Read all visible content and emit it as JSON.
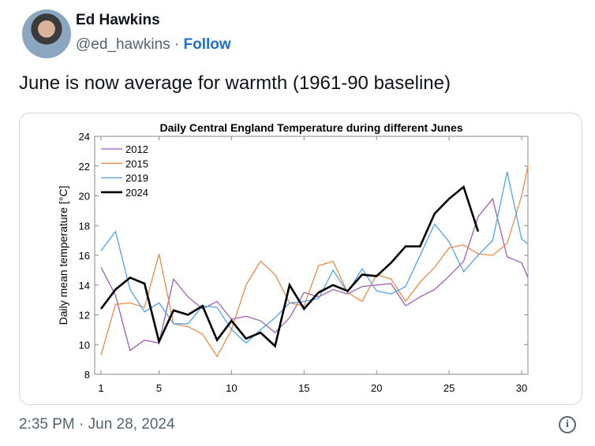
{
  "author": {
    "name": "Ed Hawkins",
    "handle": "@ed_hawkins",
    "separator": " · ",
    "follow_label": "Follow"
  },
  "tweet": {
    "text": "June is now average for warmth (1961-90 baseline)",
    "timestamp": "2:35 PM · Jun 28, 2024"
  },
  "chart_data": {
    "type": "line",
    "title": "Daily Central England Temperature during different Junes",
    "xlabel": "",
    "ylabel": "Daily mean temperature [°C]",
    "xlim": [
      1,
      30.5
    ],
    "ylim": [
      8,
      24
    ],
    "xticks": [
      1,
      5,
      10,
      15,
      20,
      25,
      30
    ],
    "yticks": [
      8,
      10,
      12,
      14,
      16,
      18,
      20,
      22,
      24
    ],
    "legend": "top-left",
    "series": [
      {
        "name": "2012",
        "color": "#a05cb5",
        "width": 1.3,
        "values": [
          15.2,
          13.3,
          9.6,
          10.3,
          10.1,
          14.4,
          13.2,
          12.4,
          12.9,
          11.7,
          11.9,
          11.6,
          10.8,
          11.8,
          13.5,
          13.2,
          13.7,
          13.4,
          13.9,
          14.0,
          14.1,
          12.6,
          13.2,
          13.7,
          14.6,
          15.6,
          18.6,
          19.8,
          15.9,
          15.5,
          13.2
        ]
      },
      {
        "name": "2015",
        "color": "#ee8a45",
        "width": 1.3,
        "values": [
          9.3,
          12.7,
          12.8,
          12.5,
          16.1,
          11.4,
          11.2,
          10.7,
          9.2,
          11.0,
          14.0,
          15.6,
          14.7,
          12.8,
          12.6,
          15.3,
          15.6,
          13.5,
          12.9,
          14.7,
          14.4,
          12.9,
          14.2,
          15.2,
          16.5,
          16.7,
          16.1,
          16.0,
          16.8,
          20.0,
          24.6
        ]
      },
      {
        "name": "2019",
        "color": "#4ea3ef",
        "width": 1.3,
        "values": [
          16.3,
          17.6,
          13.7,
          12.2,
          12.8,
          11.4,
          11.4,
          12.6,
          12.5,
          11.0,
          10.1,
          11.0,
          11.8,
          12.8,
          12.9,
          13.1,
          15.0,
          13.5,
          15.1,
          13.6,
          13.4,
          13.9,
          16.0,
          18.1,
          16.9,
          14.9,
          16.0,
          17.0,
          21.6,
          17.1,
          16.3
        ]
      },
      {
        "name": "2024",
        "color": "#000000",
        "width": 2.6,
        "values": [
          12.4,
          13.7,
          14.5,
          14.1,
          10.2,
          12.3,
          12.0,
          12.6,
          10.3,
          11.6,
          10.4,
          10.8,
          9.9,
          14.0,
          12.4,
          13.5,
          14.0,
          13.6,
          14.7,
          14.6,
          15.5,
          16.6,
          16.6,
          18.8,
          19.8,
          20.6,
          17.6
        ]
      }
    ]
  }
}
